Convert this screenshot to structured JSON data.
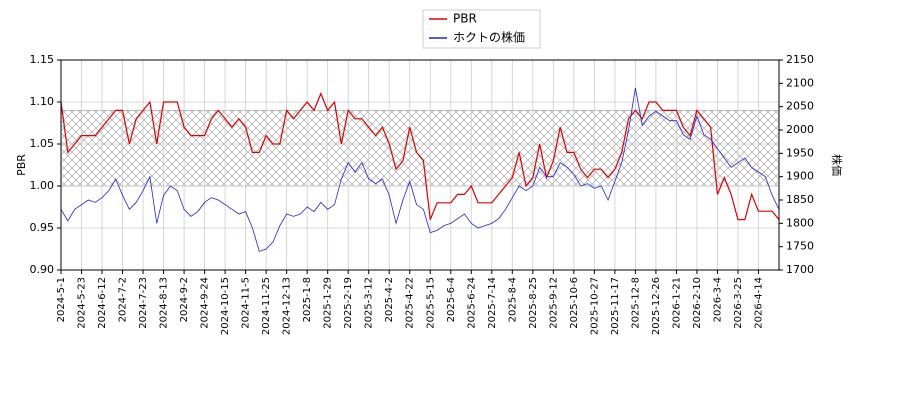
{
  "chart_data": {
    "type": "line",
    "x": [
      "2024-5-1",
      null,
      null,
      "2024-5-23",
      null,
      null,
      "2024-6-12",
      null,
      null,
      "2024-7-2",
      null,
      null,
      "2024-7-23",
      null,
      null,
      "2024-8-13",
      null,
      null,
      "2024-9-2",
      null,
      null,
      "2024-9-24",
      null,
      null,
      "2024-10-15",
      null,
      null,
      "2024-11-5",
      null,
      null,
      "2024-11-25",
      null,
      null,
      "2024-12-13",
      null,
      null,
      "2025-1-8",
      null,
      null,
      "2025-1-29",
      null,
      null,
      "2025-2-19",
      null,
      null,
      "2025-3-12",
      null,
      null,
      "2025-4-2",
      null,
      null,
      "2025-4-22",
      null,
      null,
      "2025-5-15",
      null,
      null,
      "2025-6-4",
      null,
      null,
      "2025-6-24",
      null,
      null,
      "2025-7-14",
      null,
      null,
      "2025-8-4",
      null,
      null,
      "2025-8-25",
      null,
      null,
      "2025-9-12",
      null,
      null,
      "2025-10-6",
      null,
      null,
      "2025-10-27",
      null,
      null,
      "2025-11-17",
      null,
      null,
      "2025-12-8",
      null,
      null,
      "2025-12-26",
      null,
      null,
      "2026-1-21",
      null,
      null,
      "2026-2-10",
      null,
      null,
      "2026-3-4",
      null,
      null,
      "2026-3-25",
      null,
      null,
      "2026-4-14",
      null,
      null,
      null
    ],
    "series": [
      {
        "name": "PBR",
        "color": "#dd0000",
        "axis": "y",
        "values": [
          1.1,
          1.04,
          1.05,
          1.06,
          1.06,
          1.06,
          1.07,
          1.08,
          1.09,
          1.09,
          1.05,
          1.08,
          1.09,
          1.1,
          1.05,
          1.1,
          1.1,
          1.1,
          1.07,
          1.06,
          1.06,
          1.06,
          1.08,
          1.09,
          1.08,
          1.07,
          1.08,
          1.07,
          1.04,
          1.04,
          1.06,
          1.05,
          1.05,
          1.09,
          1.08,
          1.09,
          1.1,
          1.09,
          1.11,
          1.09,
          1.1,
          1.05,
          1.09,
          1.08,
          1.08,
          1.07,
          1.06,
          1.07,
          1.05,
          1.02,
          1.03,
          1.07,
          1.04,
          1.03,
          0.96,
          0.98,
          0.98,
          0.98,
          0.99,
          0.99,
          1.0,
          0.98,
          0.98,
          0.98,
          0.99,
          1.0,
          1.01,
          1.04,
          1.0,
          1.01,
          1.05,
          1.01,
          1.03,
          1.07,
          1.04,
          1.04,
          1.02,
          1.01,
          1.02,
          1.02,
          1.01,
          1.02,
          1.04,
          1.08,
          1.09,
          1.08,
          1.1,
          1.1,
          1.09,
          1.09,
          1.09,
          1.07,
          1.06,
          1.09,
          1.08,
          1.07,
          0.99,
          1.01,
          0.99,
          0.96,
          0.96,
          0.99,
          0.97,
          0.97,
          0.97,
          0.96
        ]
      },
      {
        "name": "ホクトの株価",
        "color": "#2222dd",
        "axis": "y2",
        "values": [
          1830,
          1805,
          1830,
          1840,
          1850,
          1845,
          1855,
          1870,
          1895,
          1860,
          1830,
          1845,
          1870,
          1900,
          1800,
          1860,
          1880,
          1870,
          1830,
          1815,
          1825,
          1845,
          1855,
          1850,
          1840,
          1830,
          1820,
          1825,
          1790,
          1740,
          1745,
          1760,
          1795,
          1820,
          1815,
          1820,
          1835,
          1825,
          1845,
          1830,
          1840,
          1895,
          1930,
          1910,
          1930,
          1895,
          1885,
          1895,
          1860,
          1800,
          1850,
          1890,
          1840,
          1830,
          1780,
          1785,
          1795,
          1800,
          1810,
          1820,
          1800,
          1790,
          1795,
          1800,
          1810,
          1830,
          1855,
          1880,
          1870,
          1880,
          1920,
          1900,
          1900,
          1930,
          1920,
          1905,
          1880,
          1885,
          1875,
          1880,
          1850,
          1890,
          1930,
          2000,
          2090,
          2010,
          2030,
          2040,
          2030,
          2020,
          2020,
          1990,
          1980,
          2030,
          1990,
          1980,
          1960,
          1940,
          1920,
          1930,
          1940,
          1920,
          1910,
          1900,
          1860,
          1830
        ]
      }
    ],
    "ylabel": "PBR",
    "y2label": "株価",
    "ylim": [
      0.9,
      1.15
    ],
    "yticks": [
      {
        "value": 0.9,
        "label": "0.90"
      },
      0.95,
      {
        "value": 1.0,
        "label": "1.00"
      },
      1.05,
      {
        "value": 1.1,
        "label": "1.10"
      },
      1.15
    ],
    "y2lim": [
      1700,
      2150
    ],
    "y2ticks": [
      1700,
      1750,
      1800,
      1850,
      1900,
      1950,
      2000,
      2050,
      2100,
      2150
    ],
    "band": [
      1.0,
      1.09
    ],
    "grid": true,
    "legend": "top"
  }
}
